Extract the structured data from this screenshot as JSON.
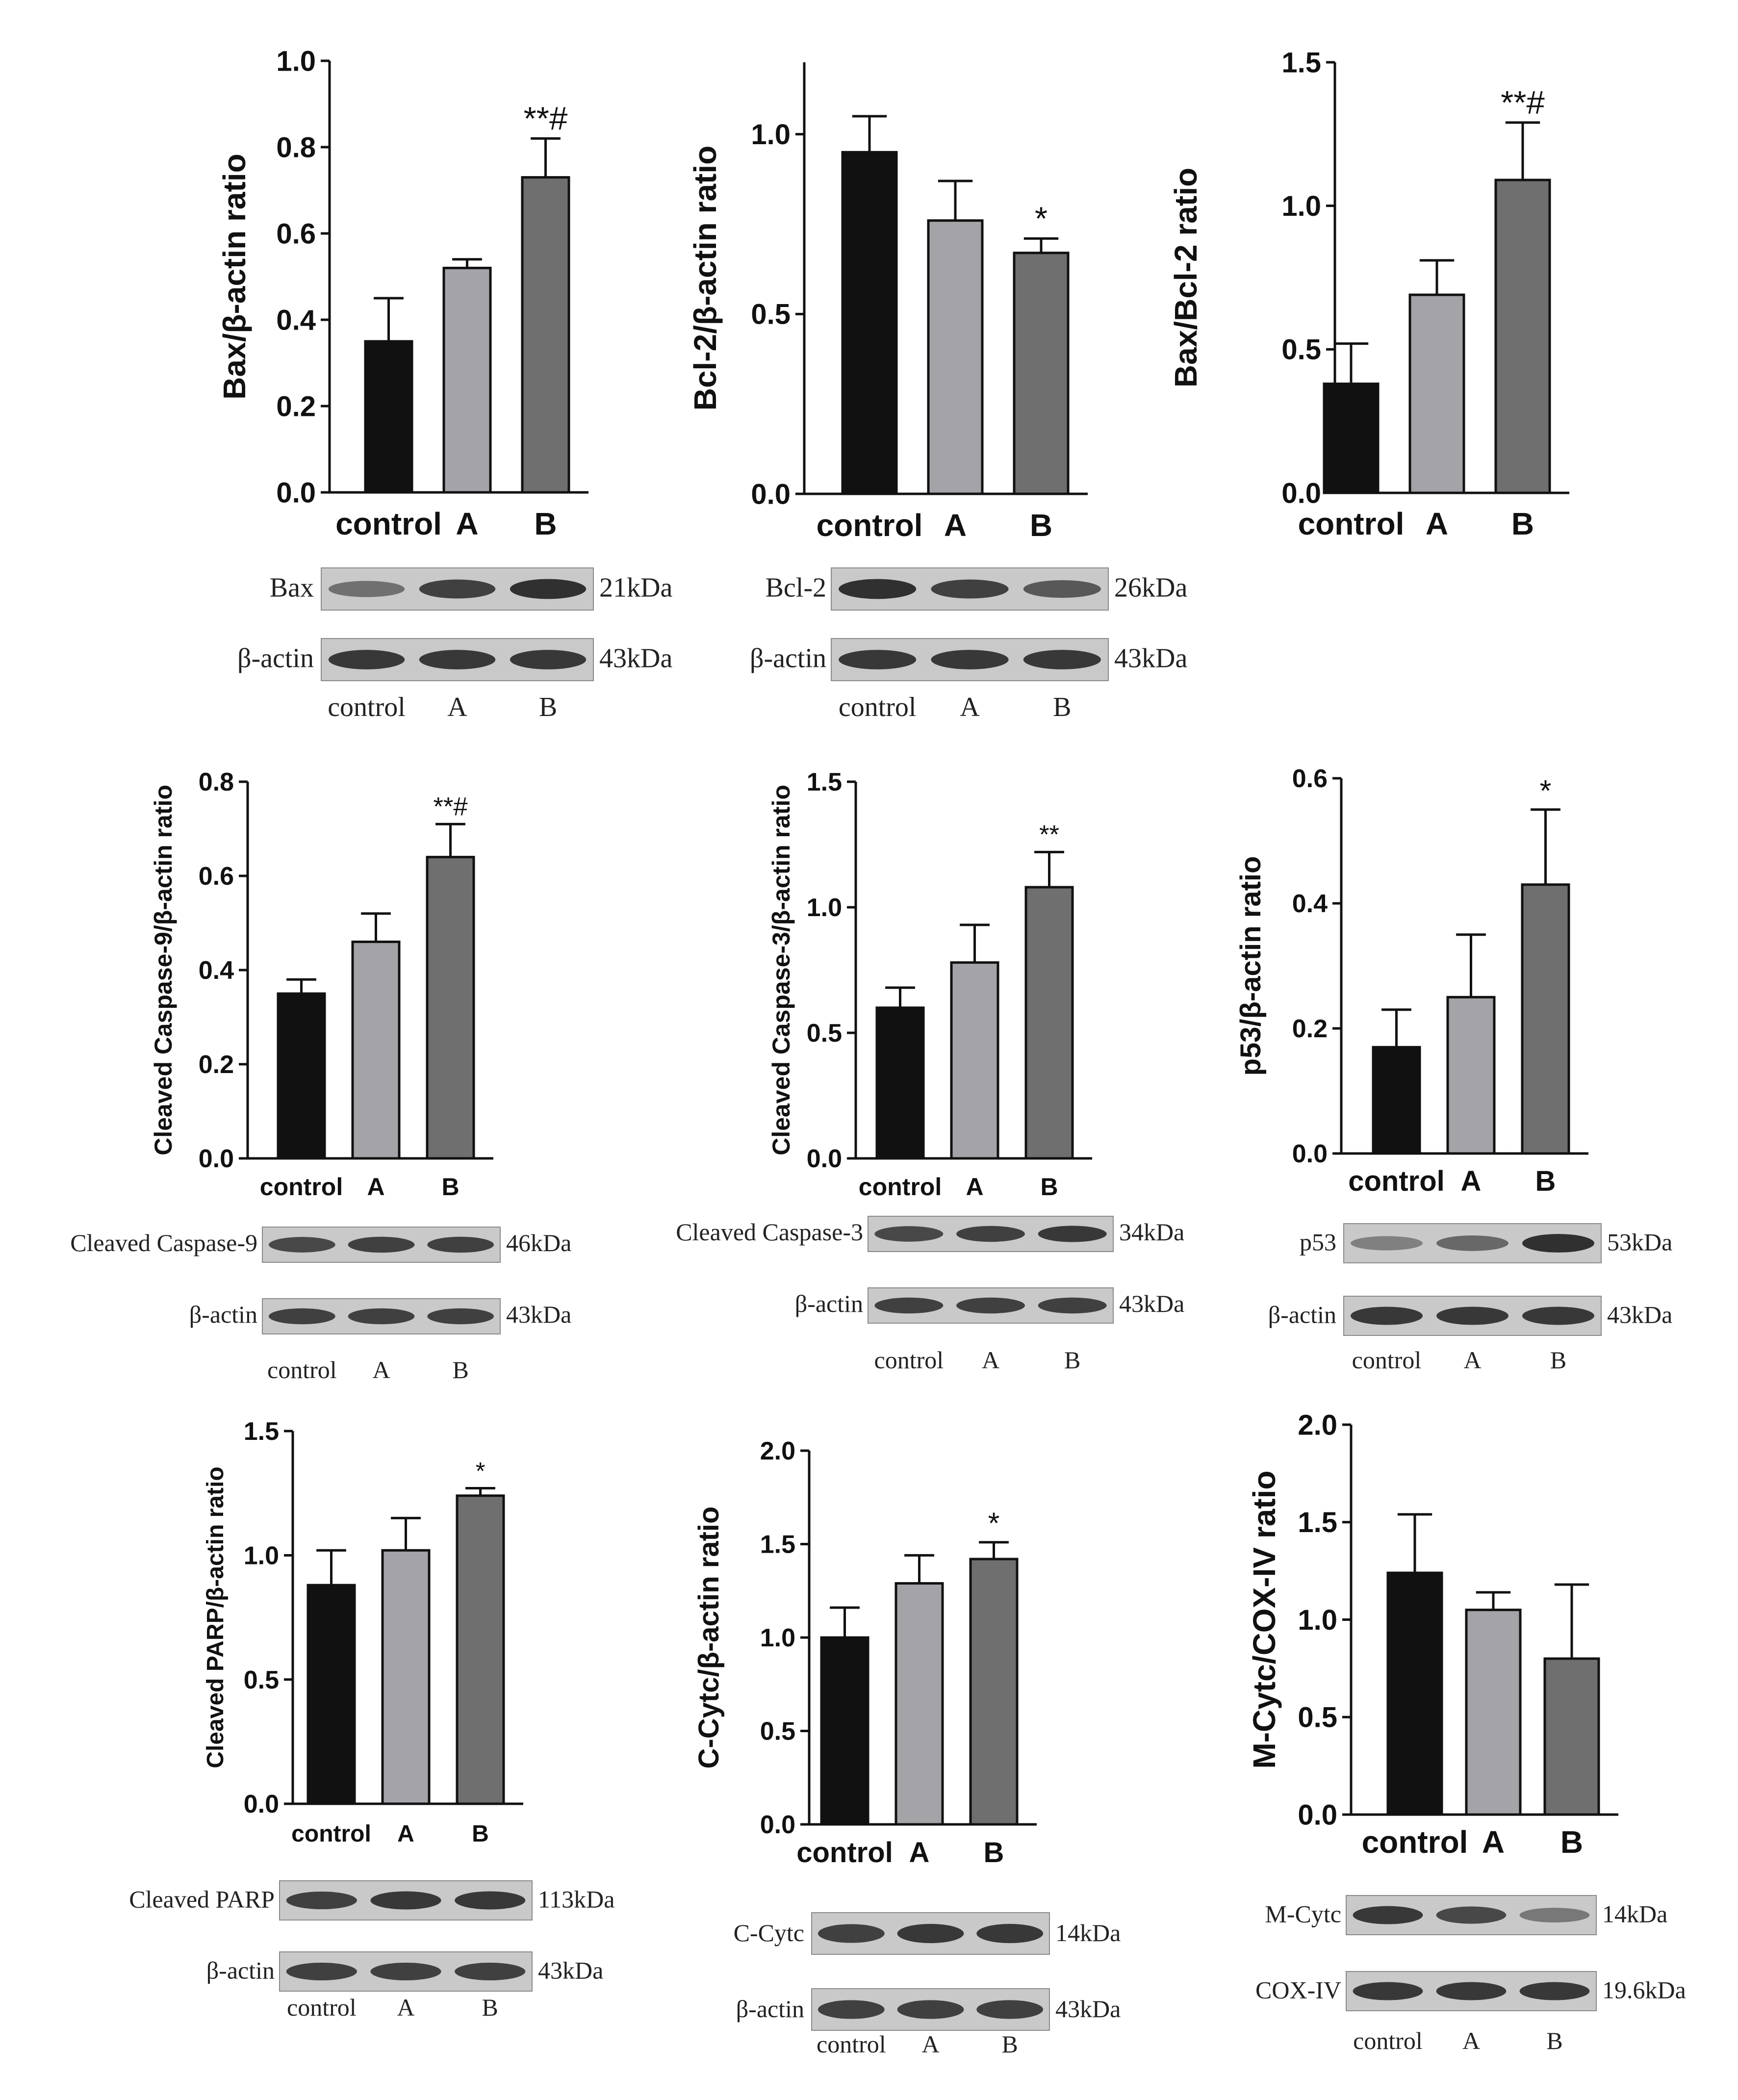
{
  "colors": {
    "control": "#111111",
    "A": "#a3a3a8",
    "B": "#6f6f70",
    "axis": "#111111",
    "blot_bg": "#c9c9c9",
    "blot_band": "#3a3a3a"
  },
  "group_labels": [
    "control",
    "A",
    "B"
  ],
  "chart_data": [
    {
      "id": "bax",
      "type": "bar",
      "categories": [
        "control",
        "A",
        "B"
      ],
      "values": [
        0.35,
        0.52,
        0.73
      ],
      "errors": [
        0.1,
        0.02,
        0.09
      ],
      "significance": [
        "",
        "",
        "**#"
      ],
      "ylabel": "Bax/β-actin ratio",
      "ylim": [
        0,
        1.0
      ],
      "yticks": [
        "0.0",
        "0.2",
        "0.4",
        "0.6",
        "0.8",
        "1.0"
      ],
      "ytick_values": [
        0,
        0.2,
        0.4,
        0.6,
        0.8,
        1.0
      ],
      "blot": {
        "rows": [
          {
            "protein": "Bax",
            "size": "21kDa",
            "intensity": [
              0.55,
              0.85,
              0.95
            ]
          },
          {
            "protein": "β-actin",
            "size": "43kDa",
            "intensity": [
              0.9,
              0.9,
              0.9
            ]
          }
        ],
        "lane_labels": [
          "control",
          "A",
          "B"
        ]
      }
    },
    {
      "id": "bcl2",
      "type": "bar",
      "categories": [
        "control",
        "A",
        "B"
      ],
      "values": [
        0.95,
        0.76,
        0.67
      ],
      "errors": [
        0.1,
        0.11,
        0.04
      ],
      "significance": [
        "",
        "",
        "*"
      ],
      "ylabel": "Bcl-2/β-actin ratio",
      "ylim": [
        0,
        1.2
      ],
      "yticks": [
        "0.0",
        "0.5",
        "1.0"
      ],
      "ytick_values": [
        0,
        0.5,
        1.0
      ],
      "blot": {
        "rows": [
          {
            "protein": "Bcl-2",
            "size": "26kDa",
            "intensity": [
              0.95,
              0.85,
              0.7
            ]
          },
          {
            "protein": "β-actin",
            "size": "43kDa",
            "intensity": [
              0.9,
              0.9,
              0.9
            ]
          }
        ],
        "lane_labels": [
          "control",
          "A",
          "B"
        ]
      }
    },
    {
      "id": "baxbcl2",
      "type": "bar",
      "categories": [
        "control",
        "A",
        "B"
      ],
      "values": [
        0.38,
        0.69,
        1.09
      ],
      "errors": [
        0.14,
        0.12,
        0.2
      ],
      "significance": [
        "",
        "",
        "**#"
      ],
      "ylabel": "Bax/Bcl-2 ratio",
      "ylim": [
        0,
        1.5
      ],
      "yticks": [
        "0.0",
        "0.5",
        "1.0",
        "1.5"
      ],
      "ytick_values": [
        0,
        0.5,
        1.0,
        1.5
      ],
      "blot": null
    },
    {
      "id": "casp9",
      "type": "bar",
      "categories": [
        "control",
        "A",
        "B"
      ],
      "values": [
        0.35,
        0.46,
        0.64
      ],
      "errors": [
        0.03,
        0.06,
        0.07
      ],
      "significance": [
        "",
        "",
        "**#"
      ],
      "ylabel": "Cleaved Caspase-9/β-actin ratio",
      "ylim": [
        0,
        0.8
      ],
      "yticks": [
        "0.0",
        "0.2",
        "0.4",
        "0.6",
        "0.8"
      ],
      "ytick_values": [
        0,
        0.2,
        0.4,
        0.6,
        0.8
      ],
      "blot": {
        "rows": [
          {
            "protein": "Cleaved Caspase-9",
            "size": "46kDa",
            "intensity": [
              0.8,
              0.85,
              0.85
            ]
          },
          {
            "protein": "β-actin",
            "size": "43kDa",
            "intensity": [
              0.85,
              0.85,
              0.85
            ]
          }
        ],
        "lane_labels": [
          "control",
          "A",
          "B"
        ]
      }
    },
    {
      "id": "casp3",
      "type": "bar",
      "categories": [
        "control",
        "A",
        "B"
      ],
      "values": [
        0.6,
        0.78,
        1.08
      ],
      "errors": [
        0.08,
        0.15,
        0.14
      ],
      "significance": [
        "",
        "",
        "**"
      ],
      "ylabel": "Cleaved Caspase-3/β-actin ratio",
      "ylim": [
        0,
        1.5
      ],
      "yticks": [
        "0.0",
        "0.5",
        "1.0",
        "1.5"
      ],
      "ytick_values": [
        0,
        0.5,
        1.0,
        1.5
      ],
      "blot": {
        "rows": [
          {
            "protein": "Cleaved Caspase-3",
            "size": "34kDa",
            "intensity": [
              0.8,
              0.85,
              0.9
            ]
          },
          {
            "protein": "β-actin",
            "size": "43kDa",
            "intensity": [
              0.85,
              0.85,
              0.85
            ]
          }
        ],
        "lane_labels": [
          "control",
          "A",
          "B"
        ]
      }
    },
    {
      "id": "p53",
      "type": "bar",
      "categories": [
        "control",
        "A",
        "B"
      ],
      "values": [
        0.17,
        0.25,
        0.43
      ],
      "errors": [
        0.06,
        0.1,
        0.12
      ],
      "significance": [
        "",
        "",
        "*"
      ],
      "ylabel": "p53/β-actin ratio",
      "ylim": [
        0,
        0.6
      ],
      "yticks": [
        "0.0",
        "0.2",
        "0.4",
        "0.6"
      ],
      "ytick_values": [
        0,
        0.2,
        0.4,
        0.6
      ],
      "blot": {
        "rows": [
          {
            "protein": "p53",
            "size": "53kDa",
            "intensity": [
              0.45,
              0.6,
              0.95
            ]
          },
          {
            "protein": "β-actin",
            "size": "43kDa",
            "intensity": [
              0.9,
              0.9,
              0.9
            ]
          }
        ],
        "lane_labels": [
          "control",
          "A",
          "B"
        ]
      }
    },
    {
      "id": "parp",
      "type": "bar",
      "categories": [
        "control",
        "A",
        "B"
      ],
      "values": [
        0.88,
        1.02,
        1.24
      ],
      "errors": [
        0.14,
        0.13,
        0.03
      ],
      "significance": [
        "",
        "",
        "*"
      ],
      "ylabel": "Cleaved PARP/β-actin ratio",
      "ylim": [
        0,
        1.5
      ],
      "yticks": [
        "0.0",
        "0.5",
        "1.0",
        "1.5"
      ],
      "ytick_values": [
        0,
        0.5,
        1.0,
        1.5
      ],
      "blot": {
        "rows": [
          {
            "protein": "Cleaved PARP",
            "size": "113kDa",
            "intensity": [
              0.85,
              0.9,
              0.9
            ]
          },
          {
            "protein": "β-actin",
            "size": "43kDa",
            "intensity": [
              0.85,
              0.85,
              0.85
            ]
          }
        ],
        "lane_labels": [
          "control",
          "A",
          "B"
        ]
      }
    },
    {
      "id": "ccytc",
      "type": "bar",
      "categories": [
        "control",
        "A",
        "B"
      ],
      "values": [
        1.0,
        1.29,
        1.42
      ],
      "errors": [
        0.16,
        0.15,
        0.09
      ],
      "significance": [
        "",
        "",
        "*"
      ],
      "ylabel": "C-Cytc/β-actin ratio",
      "ylim": [
        0,
        2.0
      ],
      "yticks": [
        "0.0",
        "0.5",
        "1.0",
        "1.5",
        "2.0"
      ],
      "ytick_values": [
        0,
        0.5,
        1.0,
        1.5,
        2.0
      ],
      "blot": {
        "rows": [
          {
            "protein": "C-Cytc",
            "size": "14kDa",
            "intensity": [
              0.85,
              0.9,
              0.9
            ]
          },
          {
            "protein": "β-actin",
            "size": "43kDa",
            "intensity": [
              0.85,
              0.85,
              0.85
            ]
          }
        ],
        "lane_labels": [
          "control",
          "A",
          "B"
        ]
      }
    },
    {
      "id": "mcytc",
      "type": "bar",
      "categories": [
        "control",
        "A",
        "B"
      ],
      "values": [
        1.24,
        1.05,
        0.8
      ],
      "errors": [
        0.3,
        0.09,
        0.38
      ],
      "significance": [
        "",
        "",
        ""
      ],
      "ylabel": "M-Cytc/COX-IV ratio",
      "ylim": [
        0,
        2.0
      ],
      "yticks": [
        "0.0",
        "0.5",
        "1.0",
        "1.5",
        "2.0"
      ],
      "ytick_values": [
        0,
        0.5,
        1.0,
        1.5,
        2.0
      ],
      "blot": {
        "rows": [
          {
            "protein": "M-Cytc",
            "size": "14kDa",
            "intensity": [
              0.9,
              0.8,
              0.5
            ]
          },
          {
            "protein": "COX-IV",
            "size": "19.6kDa",
            "intensity": [
              0.9,
              0.9,
              0.9
            ]
          }
        ],
        "lane_labels": [
          "control",
          "A",
          "B"
        ]
      }
    }
  ]
}
